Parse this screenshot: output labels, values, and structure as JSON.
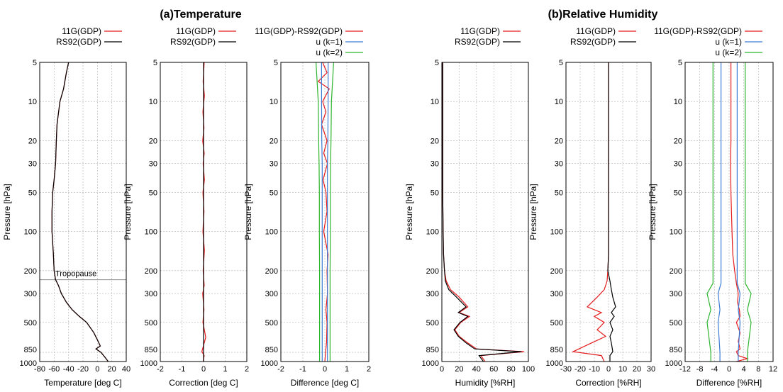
{
  "titles": {
    "temperature": "(a)Temperature",
    "humidity": "(b)Relative Humidity"
  },
  "pressure_ticks": [
    "5",
    "10",
    "20",
    "30",
    "50",
    "100",
    "200",
    "300",
    "500",
    "850",
    "1000"
  ],
  "ylabel": "Pressure [hPa]",
  "colors": {
    "11G": "#e41a1c",
    "RS92": "#000000",
    "u1": "#3a7bd5",
    "u2": "#2cb52c",
    "tropopause": "#888888"
  },
  "chart_data": [
    {
      "id": "t-profile",
      "type": "line",
      "group": "temperature",
      "xlabel": "Temperature [deg C]",
      "ylabel": "Pressure [hPa]",
      "xlim": [
        -80,
        40
      ],
      "xticks": [
        "-80",
        "-60",
        "-40",
        "-20",
        "0",
        "20",
        "40"
      ],
      "ylim": [
        5,
        1000
      ],
      "yscale": "log",
      "grid": true,
      "legend": [
        "11G(GDP)",
        "RS92(GDP)"
      ],
      "annotation": "Tropopause",
      "tropopause_hpa": 235,
      "series": [
        {
          "name": "11G(GDP)",
          "color": "#e41a1c",
          "x": [
            -40,
            -43,
            -47,
            -52,
            -56,
            -57,
            -58,
            -60,
            -62,
            -63,
            -63,
            -61,
            -60,
            -58,
            -54,
            -50,
            -43,
            -35,
            -25,
            -15,
            -5,
            1,
            4,
            -2,
            5,
            10,
            15
          ],
          "y": [
            5,
            6,
            8,
            10,
            15,
            20,
            30,
            40,
            50,
            70,
            100,
            150,
            200,
            235,
            260,
            300,
            350,
            400,
            450,
            500,
            600,
            700,
            760,
            800,
            850,
            920,
            1000
          ]
        },
        {
          "name": "RS92(GDP)",
          "color": "#000000",
          "x": [
            -40,
            -43,
            -47,
            -52,
            -56,
            -57,
            -58,
            -60,
            -62,
            -63,
            -63,
            -61,
            -60,
            -58,
            -54,
            -50,
            -43,
            -35,
            -25,
            -15,
            -5,
            1,
            4,
            -2,
            5,
            10,
            15
          ],
          "y": [
            5,
            6,
            8,
            10,
            15,
            20,
            30,
            40,
            50,
            70,
            100,
            150,
            200,
            235,
            260,
            300,
            350,
            400,
            450,
            500,
            600,
            700,
            760,
            800,
            850,
            920,
            1000
          ]
        }
      ]
    },
    {
      "id": "t-correction",
      "type": "line",
      "group": "temperature",
      "xlabel": "Correction [deg C]",
      "ylabel": "Pressure [hPa]",
      "xlim": [
        -2,
        2
      ],
      "xticks": [
        "-2",
        "-1",
        "0",
        "1",
        "2"
      ],
      "ylim": [
        5,
        1000
      ],
      "yscale": "log",
      "grid": true,
      "legend": [
        "11G(GDP)",
        "RS92(GDP)"
      ],
      "series": [
        {
          "name": "11G(GDP)",
          "color": "#e41a1c",
          "x": [
            0.03,
            -0.02,
            0.04,
            -0.03,
            0.02,
            -0.04,
            0.03,
            -0.02,
            0.04,
            -0.03,
            0.02,
            -0.03,
            0.04,
            -0.02,
            0.03,
            -0.04,
            0.02,
            -0.03,
            0.1,
            -0.08,
            0.03,
            -0.02
          ],
          "y": [
            5,
            7,
            9,
            12,
            16,
            20,
            25,
            30,
            40,
            50,
            70,
            100,
            140,
            200,
            260,
            300,
            400,
            500,
            650,
            840,
            900,
            1000
          ]
        },
        {
          "name": "RS92(GDP)",
          "color": "#000000",
          "x": [
            0,
            0,
            0,
            0,
            0,
            0,
            0,
            0,
            0,
            0,
            0
          ],
          "y": [
            5,
            10,
            20,
            30,
            50,
            100,
            200,
            300,
            500,
            850,
            1000
          ]
        }
      ]
    },
    {
      "id": "t-difference",
      "type": "line",
      "group": "temperature",
      "xlabel": "Difference [deg C]",
      "ylabel": "Pressure [hPa]",
      "xlim": [
        -2,
        2
      ],
      "xticks": [
        "-2",
        "-1",
        "0",
        "1",
        "2"
      ],
      "ylim": [
        5,
        1000
      ],
      "yscale": "log",
      "grid": true,
      "legend": [
        "11G(GDP)-RS92(GDP)",
        "u (k=1)",
        "u (k=2)"
      ],
      "series": [
        {
          "name": "11G(GDP)-RS92(GDP)",
          "color": "#e41a1c",
          "x": [
            -0.1,
            0.1,
            -0.3,
            0.2,
            -0.1,
            0.05,
            -0.15,
            0.1,
            -0.05,
            0.12,
            -0.08,
            0.05,
            0.1,
            -0.05,
            0.15,
            0.1,
            0.12,
            0.05,
            0.1,
            0.08,
            0.0
          ],
          "y": [
            5,
            6,
            7,
            8,
            10,
            12,
            15,
            20,
            25,
            30,
            40,
            50,
            70,
            100,
            150,
            200,
            300,
            400,
            500,
            700,
            1000
          ]
        },
        {
          "name": "u (k=1) +",
          "color": "#3a7bd5",
          "x": [
            0.15,
            0.15,
            0.14,
            0.12,
            0.12,
            0.12,
            0.12,
            0.12,
            0.12,
            0.12,
            0.12
          ],
          "y": [
            5,
            10,
            20,
            30,
            50,
            100,
            200,
            300,
            500,
            850,
            1000
          ]
        },
        {
          "name": "u (k=1) -",
          "color": "#3a7bd5",
          "x": [
            -0.15,
            -0.15,
            -0.14,
            -0.12,
            -0.12,
            -0.12,
            -0.12,
            -0.12,
            -0.12,
            -0.12,
            -0.12
          ],
          "y": [
            5,
            10,
            20,
            30,
            50,
            100,
            200,
            300,
            500,
            850,
            1000
          ]
        },
        {
          "name": "u (k=2) +",
          "color": "#2cb52c",
          "x": [
            0.4,
            0.3,
            0.28,
            0.26,
            0.25,
            0.25,
            0.24,
            0.24,
            0.24,
            0.24,
            0.24
          ],
          "y": [
            5,
            10,
            20,
            30,
            50,
            100,
            200,
            300,
            500,
            850,
            1000
          ]
        },
        {
          "name": "u (k=2) -",
          "color": "#2cb52c",
          "x": [
            -0.4,
            -0.3,
            -0.28,
            -0.26,
            -0.25,
            -0.25,
            -0.24,
            -0.24,
            -0.24,
            -0.24,
            -0.24
          ],
          "y": [
            5,
            10,
            20,
            30,
            50,
            100,
            200,
            300,
            500,
            850,
            1000
          ]
        }
      ]
    },
    {
      "id": "rh-profile",
      "type": "line",
      "group": "humidity",
      "xlabel": "Humidity [%RH]",
      "ylabel": "Pressure [hPa]",
      "xlim": [
        0,
        100
      ],
      "xticks": [
        "0",
        "20",
        "40",
        "60",
        "80",
        "100"
      ],
      "ylim": [
        5,
        1000
      ],
      "yscale": "log",
      "grid": true,
      "legend": [
        "11G(GDP)",
        "RS92(GDP)"
      ],
      "series": [
        {
          "name": "11G(GDP)",
          "color": "#e41a1c",
          "x": [
            1,
            1,
            1,
            1.5,
            2,
            3,
            5,
            10,
            20,
            30,
            20,
            32,
            22,
            15,
            20,
            30,
            40,
            95,
            45,
            50
          ],
          "y": [
            5,
            20,
            50,
            100,
            150,
            200,
            240,
            280,
            320,
            380,
            420,
            450,
            500,
            570,
            640,
            720,
            800,
            840,
            900,
            1000
          ]
        },
        {
          "name": "RS92(GDP)",
          "color": "#000000",
          "x": [
            1,
            1,
            1,
            1.5,
            2,
            3,
            4,
            8,
            17,
            28,
            19,
            30,
            21,
            14,
            19,
            28,
            38,
            92,
            43,
            48
          ],
          "y": [
            5,
            20,
            50,
            100,
            150,
            200,
            240,
            280,
            320,
            380,
            420,
            450,
            500,
            570,
            640,
            720,
            800,
            840,
            900,
            1000
          ]
        }
      ]
    },
    {
      "id": "rh-correction",
      "type": "line",
      "group": "humidity",
      "xlabel": "Correction [%RH]",
      "ylabel": "Pressure [hPa]",
      "xlim": [
        -30,
        30
      ],
      "xticks": [
        "-30",
        "-20",
        "-10",
        "0",
        "10",
        "20",
        "30"
      ],
      "ylim": [
        5,
        1000
      ],
      "yscale": "log",
      "grid": true,
      "legend": [
        "11G(GDP)",
        "RS92(GDP)"
      ],
      "series": [
        {
          "name": "11G(GDP)",
          "color": "#e41a1c",
          "x": [
            0,
            0,
            0,
            0,
            0,
            -0.5,
            -1,
            -3,
            -8,
            -15,
            -5,
            -10,
            -3,
            -8,
            -2,
            -12,
            -25,
            -5,
            -3
          ],
          "y": [
            5,
            20,
            50,
            100,
            150,
            200,
            240,
            280,
            320,
            380,
            420,
            450,
            500,
            570,
            640,
            720,
            840,
            900,
            1000
          ]
        },
        {
          "name": "RS92(GDP)",
          "color": "#000000",
          "x": [
            0,
            0,
            0,
            0,
            0,
            -0.5,
            1,
            2,
            3,
            5,
            2,
            4,
            1,
            3,
            1,
            2,
            3,
            1,
            1
          ],
          "y": [
            5,
            20,
            50,
            100,
            150,
            200,
            240,
            280,
            320,
            380,
            420,
            450,
            500,
            570,
            640,
            720,
            840,
            900,
            1000
          ]
        }
      ]
    },
    {
      "id": "rh-difference",
      "type": "line",
      "group": "humidity",
      "xlabel": "Difference [%RH]",
      "ylabel": "Pressure [hPa]",
      "xlim": [
        -12,
        12
      ],
      "xticks": [
        "-12",
        "-8",
        "-4",
        "0",
        "4",
        "8",
        "12"
      ],
      "ylim": [
        5,
        1000
      ],
      "yscale": "log",
      "grid": true,
      "legend": [
        "11G(GDP)-RS92(GDP)",
        "u (k=1)",
        "u (k=2)"
      ],
      "series": [
        {
          "name": "11G(GDP)-RS92(GDP)",
          "color": "#e41a1c",
          "x": [
            0.5,
            0.5,
            0.5,
            0.4,
            0.5,
            0.8,
            1,
            1.5,
            2,
            2.5,
            2.3,
            2.8,
            3,
            2,
            3,
            2.5,
            3,
            2,
            2.5,
            5,
            2
          ],
          "y": [
            5,
            10,
            20,
            30,
            50,
            100,
            150,
            200,
            250,
            300,
            350,
            400,
            450,
            500,
            600,
            700,
            800,
            840,
            900,
            950,
            1000
          ]
        },
        {
          "name": "u (k=1) +",
          "color": "#3a7bd5",
          "x": [
            2.2,
            2.2,
            2.2,
            2.2,
            2.2,
            2.2,
            2.2,
            3,
            2.5,
            3,
            2.5,
            2.5
          ],
          "y": [
            5,
            10,
            20,
            50,
            100,
            200,
            250,
            300,
            400,
            500,
            850,
            1000
          ]
        },
        {
          "name": "u (k=1) -",
          "color": "#3a7bd5",
          "x": [
            -2.2,
            -2.2,
            -2.2,
            -2.2,
            -2.2,
            -2.2,
            -2.2,
            -3,
            -2.5,
            -3,
            -2.5,
            -2.5
          ],
          "y": [
            5,
            10,
            20,
            50,
            100,
            200,
            250,
            300,
            400,
            500,
            850,
            1000
          ]
        },
        {
          "name": "u (k=2) +",
          "color": "#2cb52c",
          "x": [
            4.4,
            4.4,
            4.4,
            4.4,
            4.4,
            4.4,
            4.4,
            6,
            5,
            6,
            5,
            5
          ],
          "y": [
            5,
            10,
            20,
            50,
            100,
            200,
            250,
            300,
            400,
            500,
            850,
            1000
          ]
        },
        {
          "name": "u (k=2) -",
          "color": "#2cb52c",
          "x": [
            -4.4,
            -4.4,
            -4.4,
            -4.4,
            -4.4,
            -4.4,
            -4.4,
            -6,
            -5,
            -6,
            -5,
            -5
          ],
          "y": [
            5,
            10,
            20,
            50,
            100,
            200,
            250,
            300,
            400,
            500,
            850,
            1000
          ]
        }
      ]
    }
  ]
}
